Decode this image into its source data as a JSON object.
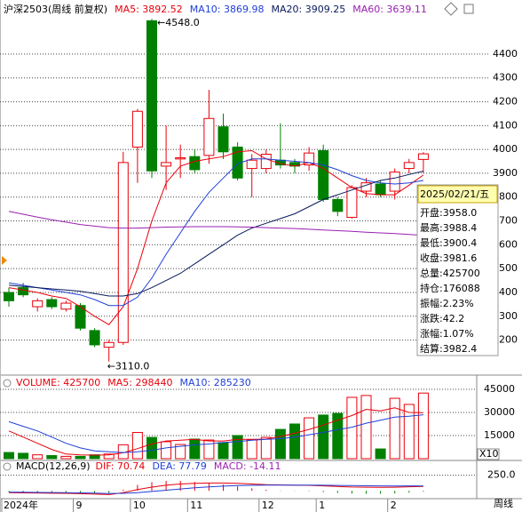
{
  "header": {
    "title": "沪深2503(周线 前复权)"
  },
  "chart_data": [
    {
      "type": "candlestick",
      "categories": [
        "2024年",
        null,
        null,
        null,
        null,
        "9",
        null,
        null,
        null,
        "10",
        null,
        null,
        null,
        "11",
        null,
        null,
        null,
        null,
        "12",
        null,
        null,
        null,
        "1",
        null,
        null,
        null,
        null,
        "2",
        null,
        null
      ],
      "open": [
        3400,
        3420,
        3340,
        3370,
        3330,
        3345,
        3240,
        3170,
        3190,
        4010,
        4540,
        3930,
        3960,
        3970,
        3975,
        4095,
        4010,
        3920,
        3920,
        3955,
        3945,
        3935,
        3995,
        3790,
        3715,
        3825,
        3855,
        3825,
        3920,
        3958
      ],
      "high": [
        3420,
        3440,
        3375,
        3380,
        3365,
        3355,
        3250,
        3200,
        3990,
        4170,
        4548,
        4100,
        4020,
        4000,
        4250,
        4150,
        4030,
        3980,
        4000,
        4110,
        3960,
        4010,
        4020,
        3800,
        3850,
        3880,
        3870,
        3920,
        3960,
        3988.4
      ],
      "low": [
        3340,
        3380,
        3320,
        3330,
        3320,
        3240,
        3170,
        3110,
        3180,
        3860,
        3880,
        3830,
        3880,
        3900,
        3940,
        3960,
        3870,
        3800,
        3900,
        3920,
        3900,
        3910,
        3780,
        3720,
        3710,
        3800,
        3800,
        3790,
        3900,
        3900.4
      ],
      "close": [
        3365,
        3390,
        3365,
        3340,
        3355,
        3250,
        3180,
        3190,
        3945,
        4160,
        3910,
        3945,
        3965,
        3915,
        4130,
        3990,
        3880,
        3955,
        3980,
        3935,
        3930,
        3985,
        3790,
        3740,
        3840,
        3860,
        3810,
        3905,
        3945,
        3981.6
      ],
      "up_color": "#e8000b",
      "down_color": "#008000",
      "max_label": "4548.0",
      "min_label": "3110.0",
      "series": [
        {
          "legend": "MA5: 3892.52",
          "color": "#e8000b",
          "values": [
            3420,
            3410,
            3400,
            3385,
            3375,
            3340,
            3300,
            3265,
            3340,
            3500,
            3700,
            3860,
            3930,
            3950,
            3960,
            3970,
            3990,
            3995,
            3960,
            3940,
            3930,
            3945,
            3920,
            3880,
            3840,
            3815,
            3810,
            3810,
            3850,
            3892.52
          ]
        },
        {
          "legend": "MA10: 3869.98",
          "color": "#1f3fd8",
          "values": [
            3440,
            3430,
            3420,
            3410,
            3400,
            3390,
            3370,
            3345,
            3345,
            3380,
            3460,
            3560,
            3650,
            3740,
            3820,
            3880,
            3940,
            3960,
            3960,
            3955,
            3950,
            3945,
            3935,
            3915,
            3890,
            3870,
            3860,
            3855,
            3860,
            3869.98
          ]
        },
        {
          "legend": "MA20: 3909.25",
          "color": "#0a1a5c",
          "values": [
            3430,
            3425,
            3420,
            3415,
            3410,
            3405,
            3395,
            3385,
            3385,
            3395,
            3420,
            3450,
            3480,
            3520,
            3560,
            3600,
            3640,
            3670,
            3690,
            3710,
            3730,
            3760,
            3790,
            3810,
            3830,
            3850,
            3870,
            3880,
            3895,
            3909.25
          ]
        },
        {
          "legend": "MA60: 3639.11",
          "color": "#9a1fb0",
          "values": [
            3740,
            3728,
            3716,
            3705,
            3695,
            3685,
            3678,
            3672,
            3670,
            3670,
            3672,
            3674,
            3675,
            3676,
            3676,
            3676,
            3675,
            3674,
            3672,
            3670,
            3668,
            3665,
            3662,
            3659,
            3656,
            3653,
            3650,
            3647,
            3643,
            3639.11
          ]
        }
      ],
      "ylim": [
        3053,
        4560
      ],
      "yticks": [
        3200,
        3300,
        3400,
        3500,
        3600,
        3700,
        3800,
        3900,
        4000,
        4100,
        4200,
        4300,
        4400
      ],
      "grid": true
    },
    {
      "type": "volume",
      "legend": "VOLUME: 425700",
      "values": [
        4000,
        3500,
        2500,
        2000,
        1500,
        1500,
        2500,
        3000,
        9000,
        17000,
        13800,
        11000,
        9200,
        12700,
        12100,
        10400,
        15000,
        12100,
        13800,
        19000,
        22500,
        26500,
        28300,
        29400,
        39800,
        41000,
        6300,
        39200,
        35200,
        42570
      ],
      "series": [
        {
          "legend": "MA5: 298440",
          "color": "#e8000b",
          "values": [
            18000,
            14000,
            10000,
            6000,
            3000,
            2500,
            2300,
            2500,
            3800,
            6500,
            9500,
            11500,
            12000,
            12500,
            11500,
            11500,
            12500,
            12500,
            12700,
            14400,
            16500,
            19000,
            21800,
            25000,
            28000,
            32000,
            31000,
            33000,
            30000,
            29844
          ]
        },
        {
          "legend": "MA10: 285230",
          "color": "#1f3fd8",
          "values": [
            24000,
            21000,
            18000,
            14000,
            10000,
            7000,
            5000,
            4500,
            4000,
            4500,
            5500,
            7000,
            8000,
            9000,
            9500,
            10500,
            11000,
            12000,
            12600,
            13000,
            14000,
            15500,
            17000,
            18800,
            20400,
            23000,
            25000,
            27000,
            27500,
            28523
          ]
        }
      ],
      "unit_label": "X10",
      "ylim": [
        0,
        52500
      ],
      "yticks": [
        15000,
        30000,
        45000
      ],
      "grid": true
    },
    {
      "type": "macd",
      "title": "MACD(12,26,9)",
      "series": [
        {
          "legend": "DIF: 70.74",
          "color": "#e8000b",
          "values": [
            -30,
            -32,
            -34,
            -38,
            -40,
            -45,
            -52,
            -60,
            -30,
            20,
            60,
            90,
            110,
            120,
            125,
            125,
            120,
            110,
            100,
            95,
            90,
            88,
            80,
            70,
            62,
            58,
            56,
            58,
            65,
            70.74
          ]
        },
        {
          "legend": "DEA: 77.79",
          "color": "#1f3fd8",
          "values": [
            -20,
            -22,
            -25,
            -27,
            -30,
            -33,
            -37,
            -42,
            -40,
            -28,
            -10,
            10,
            30,
            48,
            63,
            75,
            84,
            89,
            91,
            92,
            92,
            92,
            90,
            87,
            84,
            81,
            80,
            79,
            79.5,
            77.79
          ]
        },
        {
          "legend": "MACD: -14.11",
          "color": "#9a1fb0",
          "values": [
            -20,
            -20,
            -18,
            -22,
            -20,
            -24,
            -30,
            -36,
            20,
            96,
            140,
            160,
            160,
            144,
            124,
            100,
            72,
            42,
            18,
            6,
            -4,
            -8,
            -20,
            -34,
            -44,
            -46,
            -48,
            -42,
            -29,
            -14.11
          ]
        }
      ],
      "ylim": [
        -125,
        444
      ],
      "yticks": [
        {
          "value": 250,
          "label": "250.0"
        }
      ],
      "grid": true
    }
  ],
  "tooltip": {
    "date": "2025/02/21/五",
    "rows": [
      "开盘:3958.0",
      "最高:3988.4",
      "最低:3900.4",
      "收盘:3981.6",
      "总量:425700",
      "持仓:176088",
      "振幅:2.23%",
      "涨跌:42.2",
      "涨幅:1.07%",
      "结算:3982.4"
    ]
  },
  "footer": {
    "period": "周线"
  }
}
